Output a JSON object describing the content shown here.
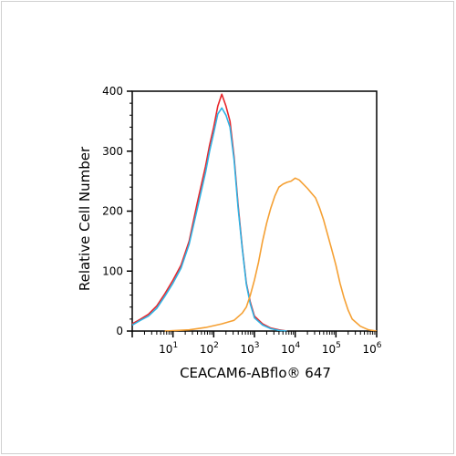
{
  "chart_data": {
    "type": "line",
    "title": "",
    "xlabel": "CEACAM6-ABflo® 647",
    "ylabel": "Relative Cell Number",
    "x_scale": "log",
    "xlim": [
      1,
      1000000
    ],
    "ylim": [
      0,
      400
    ],
    "y_ticks": [
      0,
      100,
      200,
      300,
      400
    ],
    "x_ticks": [
      {
        "value": 10,
        "base": "10",
        "exp": "1"
      },
      {
        "value": 100,
        "base": "10",
        "exp": "2"
      },
      {
        "value": 1000,
        "base": "10",
        "exp": "3"
      },
      {
        "value": 10000,
        "base": "10",
        "exp": "4"
      },
      {
        "value": 100000,
        "base": "10",
        "exp": "5"
      },
      {
        "value": 1000000,
        "base": "10",
        "exp": "6"
      }
    ],
    "grid": false,
    "legend": "none",
    "series": [
      {
        "color": "#e8262b",
        "points": [
          [
            1.0,
            12
          ],
          [
            1.6,
            20
          ],
          [
            2.5,
            28
          ],
          [
            4.0,
            42
          ],
          [
            6.3,
            62
          ],
          [
            10,
            85
          ],
          [
            15.8,
            110
          ],
          [
            25,
            150
          ],
          [
            39.8,
            215
          ],
          [
            63,
            275
          ],
          [
            79,
            310
          ],
          [
            100,
            340
          ],
          [
            126,
            375
          ],
          [
            158,
            395
          ],
          [
            200,
            375
          ],
          [
            251,
            350
          ],
          [
            316,
            290
          ],
          [
            398,
            210
          ],
          [
            501,
            140
          ],
          [
            631,
            80
          ],
          [
            794,
            48
          ],
          [
            1000,
            25
          ],
          [
            1585,
            12
          ],
          [
            2512,
            5
          ],
          [
            3981,
            2
          ],
          [
            6310,
            0
          ]
        ]
      },
      {
        "color": "#2fb3e4",
        "points": [
          [
            1.0,
            10
          ],
          [
            1.6,
            18
          ],
          [
            2.5,
            25
          ],
          [
            4.0,
            38
          ],
          [
            6.3,
            58
          ],
          [
            10,
            80
          ],
          [
            15.8,
            105
          ],
          [
            25,
            145
          ],
          [
            39.8,
            205
          ],
          [
            63,
            265
          ],
          [
            79,
            300
          ],
          [
            100,
            330
          ],
          [
            126,
            362
          ],
          [
            158,
            372
          ],
          [
            200,
            360
          ],
          [
            251,
            340
          ],
          [
            316,
            285
          ],
          [
            398,
            205
          ],
          [
            501,
            138
          ],
          [
            631,
            78
          ],
          [
            794,
            45
          ],
          [
            1000,
            22
          ],
          [
            1585,
            10
          ],
          [
            2512,
            4
          ],
          [
            3981,
            1
          ],
          [
            6310,
            0
          ]
        ]
      },
      {
        "color": "#f5a033",
        "points": [
          [
            6.3,
            0
          ],
          [
            25,
            2
          ],
          [
            63,
            6
          ],
          [
            158,
            12
          ],
          [
            316,
            18
          ],
          [
            501,
            30
          ],
          [
            631,
            40
          ],
          [
            794,
            60
          ],
          [
            1000,
            85
          ],
          [
            1259,
            115
          ],
          [
            1585,
            150
          ],
          [
            1995,
            180
          ],
          [
            2512,
            205
          ],
          [
            3162,
            225
          ],
          [
            3981,
            240
          ],
          [
            5012,
            245
          ],
          [
            6310,
            248
          ],
          [
            7943,
            250
          ],
          [
            10000,
            255
          ],
          [
            12589,
            252
          ],
          [
            15849,
            245
          ],
          [
            19953,
            238
          ],
          [
            25119,
            230
          ],
          [
            31623,
            222
          ],
          [
            39811,
            205
          ],
          [
            50119,
            185
          ],
          [
            63096,
            160
          ],
          [
            79433,
            135
          ],
          [
            100000,
            110
          ],
          [
            125893,
            80
          ],
          [
            158489,
            55
          ],
          [
            199526,
            35
          ],
          [
            251189,
            20
          ],
          [
            398107,
            8
          ],
          [
            630957,
            2
          ],
          [
            1000000,
            0
          ]
        ]
      }
    ]
  }
}
